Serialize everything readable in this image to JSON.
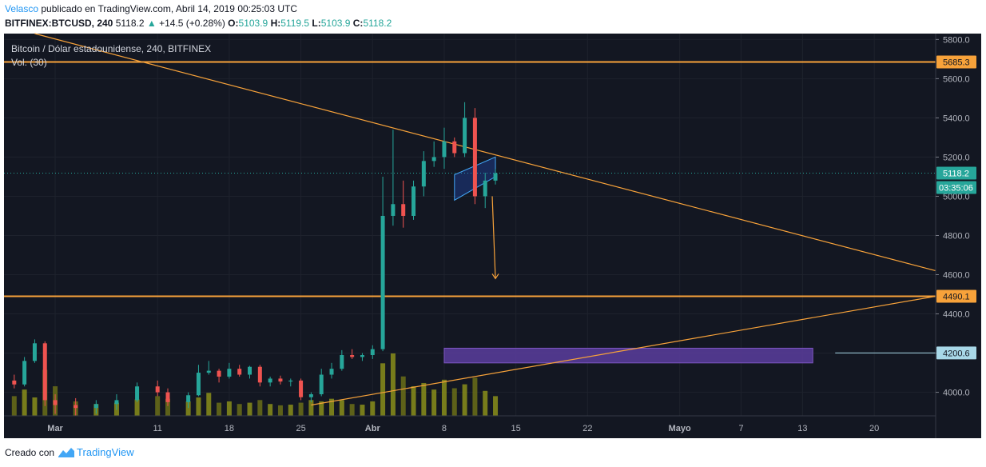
{
  "header": {
    "author": "Velasco",
    "published_text": "publicado en TradingView.com, Abril 14, 2019 00:25:03 UTC",
    "symbol": "BITFINEX:BTCUSD, 240",
    "last": "5118.2",
    "change_arrow": "▲",
    "change": "+14.5 (+0.28%)",
    "o_label": "O:",
    "o_value": "5103.9",
    "h_label": "H:",
    "h_value": "5119.5",
    "l_label": "L:",
    "l_value": "5103.9",
    "c_label": "C:",
    "c_value": "5118.2"
  },
  "footer": {
    "created_with": "Creado con",
    "brand": "TradingView",
    "logo_icon": "tradingview-logo-icon"
  },
  "chart_data": {
    "type": "candlestick",
    "title": "Bitcoin / Dólar estadounidense, 240, BITFINEX",
    "volume_label": "Vol. (30)",
    "ylim": [
      3880,
      5830
    ],
    "y_ticks": [
      4000,
      4200,
      4400,
      4600,
      4800,
      5000,
      5200,
      5400,
      5600,
      5800
    ],
    "y_tick_labels": [
      "4000.0",
      "4200.0",
      "4400.0",
      "4600.0",
      "4800.0",
      "5000.0",
      "5200.0",
      "5400.0",
      "5600.0",
      "5800.0"
    ],
    "x_tick_labels": [
      "Mar",
      "11",
      "18",
      "25",
      "Abr",
      "8",
      "15",
      "22",
      "Mayo",
      "7",
      "13",
      "20"
    ],
    "x_tick_dates": [
      "2019-03-01",
      "2019-03-11",
      "2019-03-18",
      "2019-03-25",
      "2019-04-01",
      "2019-04-08",
      "2019-04-15",
      "2019-04-22",
      "2019-05-01",
      "2019-05-07",
      "2019-05-13",
      "2019-05-20"
    ],
    "price_tags": [
      {
        "value": 5685.3,
        "label": "5685.3",
        "color": "#f7a23a"
      },
      {
        "value": 4490.1,
        "label": "4490.1",
        "color": "#f7a23a"
      },
      {
        "value": 4200.6,
        "label": "4200.6",
        "color": "#a8d8e8"
      },
      {
        "value": 5118.2,
        "label": "5118.2",
        "color": "#26a69a"
      }
    ],
    "countdown": "03:35:06",
    "horizontal_levels": [
      5685.3,
      4490.1
    ],
    "last_price": 5118.2,
    "trendlines": [
      {
        "from": {
          "date": "2019-02-27",
          "price": 5830
        },
        "to": {
          "date": "2019-05-26",
          "price": 4620
        }
      },
      {
        "from": {
          "date": "2019-03-26",
          "price": 3935
        },
        "to": {
          "date": "2019-05-26",
          "price": 4490
        }
      }
    ],
    "support_zone": {
      "from_date": "2019-04-08",
      "to_date": "2019-05-14",
      "low": 4150,
      "high": 4225
    },
    "flag_channel": {
      "from_date": "2019-04-09",
      "to_date": "2019-04-13",
      "low_start": 4980,
      "high_start": 5110,
      "low_end": 5100,
      "high_end": 5200
    },
    "projection_arrow": {
      "from": {
        "date": "2019-04-13",
        "price": 5000
      },
      "to": {
        "date": "2019-04-13",
        "price": 4580
      }
    },
    "candles": [
      {
        "date": "2019-02-25",
        "open": 4060,
        "high": 4090,
        "low": 4020,
        "close": 4040
      },
      {
        "date": "2019-02-26",
        "open": 4040,
        "high": 4180,
        "low": 4030,
        "close": 4160
      },
      {
        "date": "2019-02-27",
        "open": 4160,
        "high": 4270,
        "low": 4150,
        "close": 4250
      },
      {
        "date": "2019-02-28",
        "open": 4250,
        "high": 4260,
        "low": 3930,
        "close": 3960
      },
      {
        "date": "2019-03-01",
        "open": 3960,
        "high": 3990,
        "low": 3890,
        "close": 3935
      },
      {
        "date": "2019-03-03",
        "open": 3935,
        "high": 3970,
        "low": 3880,
        "close": 3920
      },
      {
        "date": "2019-03-05",
        "open": 3920,
        "high": 3960,
        "low": 3890,
        "close": 3940
      },
      {
        "date": "2019-03-07",
        "open": 3940,
        "high": 3990,
        "low": 3910,
        "close": 3960
      },
      {
        "date": "2019-03-09",
        "open": 3960,
        "high": 4050,
        "low": 3950,
        "close": 4030
      },
      {
        "date": "2019-03-11",
        "open": 4030,
        "high": 4060,
        "low": 3980,
        "close": 4000
      },
      {
        "date": "2019-03-12",
        "open": 4000,
        "high": 4020,
        "low": 3930,
        "close": 3950
      },
      {
        "date": "2019-03-14",
        "open": 3950,
        "high": 4000,
        "low": 3920,
        "close": 3985
      },
      {
        "date": "2019-03-15",
        "open": 3985,
        "high": 4140,
        "low": 3980,
        "close": 4100
      },
      {
        "date": "2019-03-16",
        "open": 4100,
        "high": 4160,
        "low": 4090,
        "close": 4110
      },
      {
        "date": "2019-03-17",
        "open": 4110,
        "high": 4120,
        "low": 4050,
        "close": 4080
      },
      {
        "date": "2019-03-18",
        "open": 4080,
        "high": 4150,
        "low": 4070,
        "close": 4120
      },
      {
        "date": "2019-03-19",
        "open": 4120,
        "high": 4140,
        "low": 4080,
        "close": 4090
      },
      {
        "date": "2019-03-20",
        "open": 4090,
        "high": 4135,
        "low": 4070,
        "close": 4130
      },
      {
        "date": "2019-03-21",
        "open": 4130,
        "high": 4140,
        "low": 4030,
        "close": 4050
      },
      {
        "date": "2019-03-22",
        "open": 4050,
        "high": 4080,
        "low": 4030,
        "close": 4070
      },
      {
        "date": "2019-03-23",
        "open": 4070,
        "high": 4085,
        "low": 4040,
        "close": 4055
      },
      {
        "date": "2019-03-24",
        "open": 4055,
        "high": 4070,
        "low": 4030,
        "close": 4060
      },
      {
        "date": "2019-03-25",
        "open": 4060,
        "high": 4070,
        "low": 3960,
        "close": 3975
      },
      {
        "date": "2019-03-26",
        "open": 3975,
        "high": 4000,
        "low": 3950,
        "close": 3990
      },
      {
        "date": "2019-03-27",
        "open": 3990,
        "high": 4120,
        "low": 3980,
        "close": 4090
      },
      {
        "date": "2019-03-28",
        "open": 4090,
        "high": 4150,
        "low": 4070,
        "close": 4120
      },
      {
        "date": "2019-03-29",
        "open": 4120,
        "high": 4215,
        "low": 4110,
        "close": 4190
      },
      {
        "date": "2019-03-30",
        "open": 4190,
        "high": 4220,
        "low": 4170,
        "close": 4180
      },
      {
        "date": "2019-03-31",
        "open": 4180,
        "high": 4200,
        "low": 4160,
        "close": 4190
      },
      {
        "date": "2019-04-01",
        "open": 4190,
        "high": 4240,
        "low": 4170,
        "close": 4220
      },
      {
        "date": "2019-04-02",
        "open": 4220,
        "high": 5100,
        "low": 4210,
        "close": 4900
      },
      {
        "date": "2019-04-03",
        "open": 4900,
        "high": 5340,
        "low": 4850,
        "close": 4960
      },
      {
        "date": "2019-04-04",
        "open": 4960,
        "high": 5080,
        "low": 4840,
        "close": 4900
      },
      {
        "date": "2019-04-05",
        "open": 4900,
        "high": 5080,
        "low": 4880,
        "close": 5050
      },
      {
        "date": "2019-04-06",
        "open": 5050,
        "high": 5230,
        "low": 5000,
        "close": 5180
      },
      {
        "date": "2019-04-07",
        "open": 5180,
        "high": 5280,
        "low": 5150,
        "close": 5200
      },
      {
        "date": "2019-04-08",
        "open": 5200,
        "high": 5350,
        "low": 5140,
        "close": 5280
      },
      {
        "date": "2019-04-09",
        "open": 5280,
        "high": 5300,
        "low": 5200,
        "close": 5220
      },
      {
        "date": "2019-04-10",
        "open": 5220,
        "high": 5480,
        "low": 5200,
        "close": 5400
      },
      {
        "date": "2019-04-11",
        "open": 5400,
        "high": 5450,
        "low": 4960,
        "close": 5000
      },
      {
        "date": "2019-04-12",
        "open": 5000,
        "high": 5120,
        "low": 4940,
        "close": 5080
      },
      {
        "date": "2019-04-13",
        "open": 5080,
        "high": 5140,
        "low": 5060,
        "close": 5118
      }
    ],
    "volume": [
      30,
      40,
      28,
      70,
      45,
      22,
      18,
      20,
      25,
      30,
      26,
      22,
      28,
      35,
      20,
      22,
      18,
      20,
      24,
      18,
      16,
      17,
      20,
      24,
      22,
      26,
      24,
      18,
      17,
      22,
      80,
      95,
      60,
      45,
      50,
      40,
      55,
      42,
      48,
      58,
      38,
      30
    ]
  }
}
